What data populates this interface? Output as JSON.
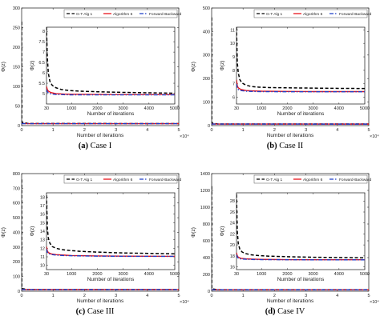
{
  "legend_labels": [
    "G-T Alg 1",
    "Algorithm 6",
    "Forward-Backward"
  ],
  "series_colors": [
    "#000000",
    "#e8131b",
    "#1f3ec7"
  ],
  "chart_data": [
    {
      "type": "line",
      "caption_letter": "(a)",
      "caption_text": "Case I",
      "xlabel": "Number of iterations",
      "ylabel": "Φ(z)",
      "xlim": [
        0,
        50000
      ],
      "ylim": [
        0,
        300
      ],
      "x_ticks": [
        0,
        1,
        2,
        3,
        4,
        5
      ],
      "x_exponent": "×10⁴",
      "y_ticks": [
        0,
        50,
        100,
        150,
        200,
        250,
        300
      ],
      "legend_position": "top-right",
      "series": [
        {
          "name": "G-T Alg 1",
          "x": [
            0,
            30,
            2000,
            50000
          ],
          "y": [
            265,
            9,
            5.5,
            5.0
          ]
        },
        {
          "name": "Algorithm 6",
          "x": [
            0,
            30,
            2000,
            50000
          ],
          "y": [
            5.4,
            5.2,
            5.0,
            4.9
          ]
        },
        {
          "name": "Forward-Backward",
          "x": [
            0,
            30,
            2000,
            50000
          ],
          "y": [
            5.3,
            5.1,
            4.95,
            4.9
          ]
        }
      ],
      "inset": {
        "xlabel": "Number of iterations",
        "ylabel": "Φ(z)",
        "xlim": [
          30,
          5000
        ],
        "ylim": [
          4.5,
          8.2
        ],
        "x_ticks": [
          30,
          1000,
          2000,
          3000,
          4000,
          5000
        ],
        "x_tick_labels": [
          "30",
          "1000",
          "2000",
          "3000",
          "4000",
          "5000"
        ],
        "y_ticks": [
          5,
          5.5,
          6,
          6.5,
          7,
          7.5,
          8
        ],
        "y_tick_labels": [
          "5",
          "5.5",
          "6",
          "6.5",
          "7",
          "7.5",
          "8"
        ],
        "series": [
          {
            "name": "G-T Alg 1",
            "x": [
              30,
              60,
              100,
              160,
              250,
              400,
              600,
              900,
              1300,
              2000,
              3000,
              4000,
              5000
            ],
            "y": [
              8.2,
              6.8,
              6.0,
              5.6,
              5.4,
              5.28,
              5.2,
              5.15,
              5.12,
              5.09,
              5.06,
              5.04,
              5.02
            ]
          },
          {
            "name": "Algorithm 6",
            "x": [
              30,
              60,
              100,
              200,
              400,
              700,
              1000,
              2000,
              3000,
              4000,
              5000
            ],
            "y": [
              5.35,
              5.2,
              5.12,
              5.05,
              5.0,
              4.98,
              4.97,
              4.96,
              4.95,
              4.95,
              4.95
            ]
          },
          {
            "name": "Forward-Backward",
            "x": [
              30,
              60,
              100,
              200,
              400,
              700,
              1000,
              2000,
              3000,
              4000,
              5000
            ],
            "y": [
              5.2,
              5.1,
              5.04,
              4.99,
              4.96,
              4.95,
              4.94,
              4.94,
              4.94,
              4.94,
              4.94
            ]
          }
        ]
      }
    },
    {
      "type": "line",
      "caption_letter": "(b)",
      "caption_text": "Case II",
      "xlabel": "Number of iterations",
      "ylabel": "Φ(z)",
      "xlim": [
        0,
        50000
      ],
      "ylim": [
        0,
        500
      ],
      "x_ticks": [
        0,
        1,
        2,
        3,
        4,
        5
      ],
      "x_exponent": "×10⁴",
      "y_ticks": [
        0,
        100,
        200,
        300,
        400,
        500
      ],
      "legend_position": "top-right",
      "series": [
        {
          "name": "G-T Alg 1",
          "x": [
            0,
            30,
            2000,
            50000
          ],
          "y": [
            460,
            11,
            6.8,
            6.6
          ]
        },
        {
          "name": "Algorithm 6",
          "x": [
            0,
            30,
            2000,
            50000
          ],
          "y": [
            7.2,
            6.8,
            6.5,
            6.4
          ]
        },
        {
          "name": "Forward-Backward",
          "x": [
            0,
            30,
            2000,
            50000
          ],
          "y": [
            7.0,
            6.7,
            6.45,
            6.4
          ]
        }
      ],
      "inset": {
        "xlabel": "Number of iterations",
        "ylabel": "Φ(z)",
        "xlim": [
          30,
          5000
        ],
        "ylim": [
          5.5,
          11.2
        ],
        "x_ticks": [
          30,
          1000,
          2000,
          3000,
          4000,
          5000
        ],
        "x_tick_labels": [
          "30",
          "1000",
          "2000",
          "3000",
          "4000",
          "5000"
        ],
        "y_ticks": [
          6,
          7,
          8,
          9,
          10,
          11
        ],
        "y_tick_labels": [
          "6",
          "7",
          "8",
          "9",
          "10",
          "11"
        ],
        "series": [
          {
            "name": "G-T Alg 1",
            "x": [
              30,
              60,
              100,
              160,
              250,
              400,
              600,
              900,
              1300,
              2000,
              3000,
              4000,
              5000
            ],
            "y": [
              11.2,
              8.6,
              7.8,
              7.3,
              7.05,
              6.9,
              6.8,
              6.75,
              6.72,
              6.7,
              6.68,
              6.66,
              6.65
            ]
          },
          {
            "name": "Algorithm 6",
            "x": [
              30,
              60,
              100,
              200,
              400,
              700,
              1000,
              2000,
              3000,
              4000,
              5000
            ],
            "y": [
              7.3,
              6.85,
              6.7,
              6.58,
              6.5,
              6.47,
              6.45,
              6.43,
              6.42,
              6.42,
              6.42
            ]
          },
          {
            "name": "Forward-Backward",
            "x": [
              30,
              60,
              100,
              200,
              400,
              700,
              1000,
              2000,
              3000,
              4000,
              5000
            ],
            "y": [
              7.0,
              6.7,
              6.58,
              6.5,
              6.45,
              6.43,
              6.42,
              6.41,
              6.41,
              6.41,
              6.41
            ]
          }
        ]
      }
    },
    {
      "type": "line",
      "caption_letter": "(c)",
      "caption_text": "Case III",
      "xlabel": "Number of iterations",
      "ylabel": "Φ(z)",
      "xlim": [
        0,
        50000
      ],
      "ylim": [
        0,
        800
      ],
      "x_ticks": [
        0,
        1,
        2,
        3,
        4,
        5
      ],
      "x_exponent": "×10⁴",
      "y_ticks": [
        0,
        100,
        200,
        300,
        400,
        500,
        600,
        700,
        800
      ],
      "legend_position": "top-right",
      "series": [
        {
          "name": "G-T Alg 1",
          "x": [
            0,
            30,
            2000,
            50000
          ],
          "y": [
            760,
            18,
            11.5,
            11.3
          ]
        },
        {
          "name": "Algorithm 6",
          "x": [
            0,
            30,
            2000,
            50000
          ],
          "y": [
            12,
            11.5,
            11.1,
            11.0
          ]
        },
        {
          "name": "Forward-Backward",
          "x": [
            0,
            30,
            2000,
            50000
          ],
          "y": [
            11.8,
            11.4,
            11.05,
            11.0
          ]
        }
      ],
      "inset": {
        "xlabel": "Number of iterations",
        "ylabel": "Φ(z)",
        "xlim": [
          30,
          5000
        ],
        "ylim": [
          9.5,
          18.5
        ],
        "x_ticks": [
          30,
          1000,
          2000,
          3000,
          4000,
          5000
        ],
        "x_tick_labels": [
          "30",
          "1000",
          "2000",
          "3000",
          "4000",
          "5000"
        ],
        "y_ticks": [
          10,
          11,
          12,
          13,
          14,
          15,
          16,
          17,
          18
        ],
        "y_tick_labels": [
          "10",
          "11",
          "12",
          "13",
          "14",
          "15",
          "16",
          "17",
          "18"
        ],
        "series": [
          {
            "name": "G-T Alg 1",
            "x": [
              30,
              60,
              100,
              160,
              250,
              400,
              600,
              900,
              1300,
              2000,
              3000,
              4000,
              5000
            ],
            "y": [
              18.2,
              14.5,
              13.2,
              12.6,
              12.2,
              12.0,
              11.85,
              11.75,
              11.65,
              11.55,
              11.45,
              11.4,
              11.35
            ]
          },
          {
            "name": "Algorithm 6",
            "x": [
              30,
              60,
              100,
              200,
              400,
              700,
              1000,
              2000,
              3000,
              4000,
              5000
            ],
            "y": [
              12.2,
              11.7,
              11.5,
              11.35,
              11.25,
              11.2,
              11.15,
              11.1,
              11.08,
              11.06,
              11.05
            ]
          },
          {
            "name": "Forward-Backward",
            "x": [
              30,
              60,
              100,
              200,
              400,
              700,
              1000,
              2000,
              3000,
              4000,
              5000
            ],
            "y": [
              11.9,
              11.55,
              11.4,
              11.28,
              11.2,
              11.15,
              11.12,
              11.08,
              11.06,
              11.05,
              11.05
            ]
          }
        ]
      }
    },
    {
      "type": "line",
      "caption_letter": "(d)",
      "caption_text": "Case IV",
      "xlabel": "Number of iterations",
      "ylabel": "Φ(z)",
      "xlim": [
        0,
        50000
      ],
      "ylim": [
        0,
        1400
      ],
      "x_ticks": [
        0,
        1,
        2,
        3,
        4,
        5
      ],
      "x_exponent": "×10⁴",
      "y_ticks": [
        0,
        200,
        400,
        600,
        800,
        1000,
        1200,
        1400
      ],
      "legend_position": "top-right",
      "series": [
        {
          "name": "G-T Alg 1",
          "x": [
            0,
            30,
            2000,
            50000
          ],
          "y": [
            1250,
            29,
            17.8,
            17.6
          ]
        },
        {
          "name": "Algorithm 6",
          "x": [
            0,
            30,
            2000,
            50000
          ],
          "y": [
            18.3,
            17.8,
            17.4,
            17.3
          ]
        },
        {
          "name": "Forward-Backward",
          "x": [
            0,
            30,
            2000,
            50000
          ],
          "y": [
            18.1,
            17.7,
            17.35,
            17.3
          ]
        }
      ],
      "inset": {
        "xlabel": "Number of iterations",
        "ylabel": "Φ(z)",
        "xlim": [
          30,
          5000
        ],
        "ylim": [
          15.5,
          29.5
        ],
        "x_ticks": [
          30,
          1000,
          2000,
          3000,
          4000,
          5000
        ],
        "x_tick_labels": [
          "30",
          "1000",
          "2000",
          "3000",
          "4000",
          "5000"
        ],
        "y_ticks": [
          16,
          18,
          20,
          22,
          24,
          26,
          28
        ],
        "y_tick_labels": [
          "16",
          "18",
          "20",
          "22",
          "24",
          "26",
          "28"
        ],
        "series": [
          {
            "name": "G-T Alg 1",
            "x": [
              30,
              60,
              100,
              160,
              250,
              400,
              600,
              900,
              1300,
              2000,
              3000,
              4000,
              5000
            ],
            "y": [
              29.2,
              22.5,
              20.2,
              19.2,
              18.7,
              18.4,
              18.2,
              18.05,
              17.95,
              17.85,
              17.75,
              17.7,
              17.65
            ]
          },
          {
            "name": "Algorithm 6",
            "x": [
              30,
              60,
              100,
              200,
              400,
              700,
              1000,
              2000,
              3000,
              4000,
              5000
            ],
            "y": [
              18.6,
              18.0,
              17.75,
              17.55,
              17.45,
              17.4,
              17.36,
              17.32,
              17.3,
              17.3,
              17.3
            ]
          },
          {
            "name": "Forward-Backward",
            "x": [
              30,
              60,
              100,
              200,
              400,
              700,
              1000,
              2000,
              3000,
              4000,
              5000
            ],
            "y": [
              18.2,
              17.8,
              17.6,
              17.45,
              17.38,
              17.34,
              17.32,
              17.3,
              17.28,
              17.28,
              17.28
            ]
          }
        ]
      }
    }
  ]
}
